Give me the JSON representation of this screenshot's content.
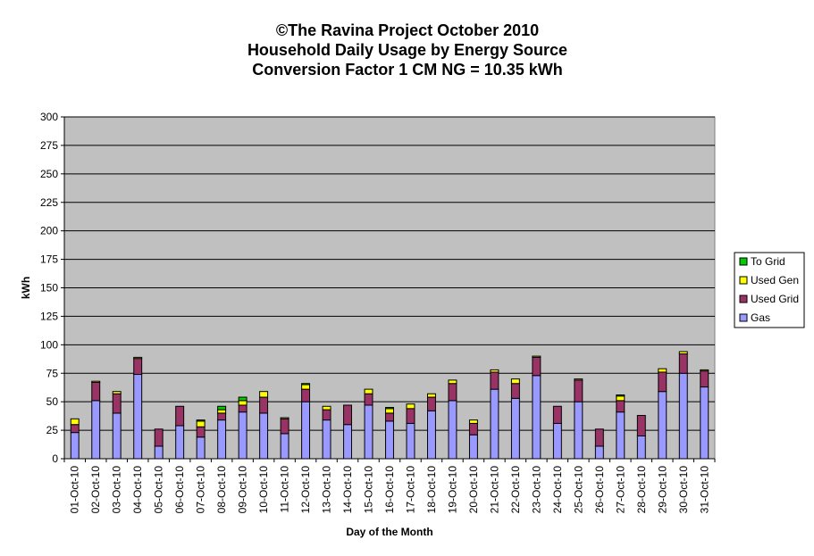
{
  "chart_data": {
    "type": "bar",
    "stacked": true,
    "title": [
      "©The Ravina Project October 2010",
      "Household Daily Usage by Energy Source",
      "Conversion Factor 1 CM NG = 10.35 kWh"
    ],
    "xlabel": "Day of the Month",
    "ylabel": "kWh",
    "ylim": [
      0,
      300
    ],
    "yticks": [
      0,
      25,
      50,
      75,
      100,
      125,
      150,
      175,
      200,
      225,
      250,
      275,
      300
    ],
    "grid": true,
    "legend_position": "right",
    "categories": [
      "01-Oct-10",
      "02-Oct-10",
      "03-Oct-10",
      "04-Oct-10",
      "05-Oct-10",
      "06-Oct-10",
      "07-Oct-10",
      "08-Oct-10",
      "09-Oct-10",
      "10-Oct-10",
      "11-Oct-10",
      "12-Oct-10",
      "13-Oct-10",
      "14-Oct-10",
      "15-Oct-10",
      "16-Oct-10",
      "17-Oct-10",
      "18-Oct-10",
      "19-Oct-10",
      "20-Oct-10",
      "21-Oct-10",
      "22-Oct-10",
      "23-Oct-10",
      "24-Oct-10",
      "25-Oct-10",
      "26-Oct-10",
      "27-Oct-10",
      "28-Oct-10",
      "29-Oct-10",
      "30-Oct-10",
      "31-Oct-10"
    ],
    "series": [
      {
        "name": "Gas",
        "color": "#9999ff",
        "values": [
          23,
          51,
          40,
          74,
          11,
          29,
          19,
          34,
          41,
          40,
          22,
          50,
          34,
          30,
          47,
          33,
          31,
          42,
          51,
          21,
          61,
          53,
          73,
          31,
          50,
          11,
          41,
          20,
          59,
          75,
          63
        ]
      },
      {
        "name": "Used Grid",
        "color": "#993366",
        "values": [
          7,
          16,
          17,
          14,
          15,
          17,
          9,
          6,
          6,
          14,
          13,
          11,
          9,
          17,
          10,
          7,
          13,
          12,
          15,
          10,
          15,
          13,
          16,
          15,
          19,
          15,
          10,
          18,
          17,
          17,
          14
        ]
      },
      {
        "name": "Used Gen",
        "color": "#ffff00",
        "values": [
          5,
          1,
          2,
          1,
          0,
          0,
          5,
          3,
          4,
          5,
          1,
          4,
          3,
          0,
          4,
          4,
          4,
          3,
          3,
          3,
          2,
          4,
          1,
          0,
          1,
          0,
          4,
          0,
          3,
          2,
          1
        ]
      },
      {
        "name": "To Grid",
        "color": "#00cc00",
        "values": [
          0,
          0,
          0,
          0,
          0,
          0,
          1,
          3,
          3,
          0,
          0,
          1,
          0,
          0,
          0,
          1,
          0,
          0,
          0,
          0,
          0,
          0,
          0,
          0,
          0,
          0,
          1,
          0,
          0,
          0,
          0
        ]
      }
    ],
    "legend_order": [
      "To Grid",
      "Used Gen",
      "Used Grid",
      "Gas"
    ],
    "colors": {
      "plot_background": "#c0c0c0",
      "gridline": "#000000",
      "bar_outline": "#000000"
    }
  }
}
